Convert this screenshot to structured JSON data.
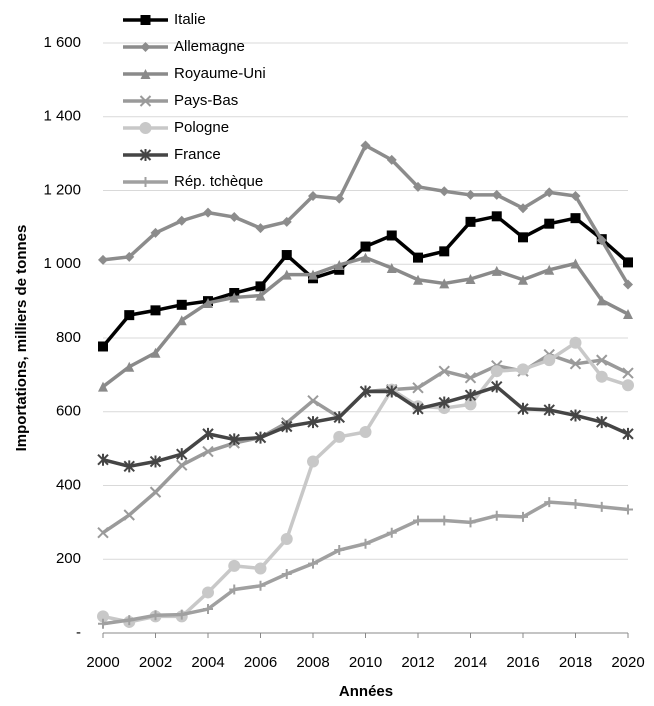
{
  "chart_data": {
    "type": "line",
    "y_label": "Importations, milliers de tonnes",
    "x_label": "Années",
    "x": [
      2000,
      2001,
      2002,
      2003,
      2004,
      2005,
      2006,
      2007,
      2008,
      2009,
      2010,
      2011,
      2012,
      2013,
      2014,
      2015,
      2016,
      2017,
      2018,
      2019,
      2020
    ],
    "xlim": [
      2000,
      2020
    ],
    "xticks": [
      2000,
      2002,
      2004,
      2006,
      2008,
      2010,
      2012,
      2014,
      2016,
      2018,
      2020
    ],
    "ylim": [
      0,
      1600
    ],
    "yticks": [
      {
        "value": 0,
        "label": "-"
      },
      200,
      400,
      600,
      800,
      {
        "value": 1000,
        "label": "1 000"
      },
      {
        "value": 1200,
        "label": "1 200"
      },
      {
        "value": 1400,
        "label": "1 400"
      },
      {
        "value": 1600,
        "label": "1 600"
      }
    ],
    "grid": true,
    "legend": "top-left",
    "series": [
      {
        "name": "Italie",
        "color": "#000000",
        "marker": "square",
        "values": [
          777,
          862,
          875,
          890,
          900,
          922,
          940,
          1025,
          962,
          985,
          1048,
          1078,
          1018,
          1035,
          1115,
          1130,
          1073,
          1110,
          1125,
          1068,
          1005
        ]
      },
      {
        "name": "Allemagne",
        "color": "#8c8c8c",
        "marker": "diamond",
        "values": [
          1012,
          1020,
          1085,
          1118,
          1140,
          1128,
          1098,
          1115,
          1185,
          1178,
          1322,
          1283,
          1210,
          1198,
          1188,
          1188,
          1152,
          1195,
          1185,
          1065,
          945
        ]
      },
      {
        "name": "Royaume-Uni",
        "color": "#8a8a8a",
        "marker": "triangle",
        "values": [
          668,
          722,
          760,
          848,
          895,
          910,
          915,
          972,
          972,
          998,
          1018,
          990,
          958,
          948,
          960,
          982,
          958,
          985,
          1002,
          902,
          865
        ]
      },
      {
        "name": "Pays-Bas",
        "color": "#9a9a9a",
        "marker": "x",
        "values": [
          272,
          320,
          382,
          455,
          492,
          515,
          530,
          570,
          630,
          585,
          655,
          660,
          665,
          710,
          692,
          725,
          710,
          755,
          730,
          740,
          705
        ]
      },
      {
        "name": "Pologne",
        "color": "#c8c8c8",
        "marker": "circle",
        "values": [
          45,
          30,
          45,
          45,
          110,
          182,
          175,
          255,
          465,
          532,
          545,
          660,
          615,
          610,
          620,
          710,
          715,
          740,
          787,
          695,
          672
        ]
      },
      {
        "name": "France",
        "color": "#454545",
        "marker": "asterisk",
        "values": [
          470,
          452,
          465,
          485,
          540,
          525,
          530,
          560,
          572,
          585,
          655,
          655,
          608,
          625,
          645,
          668,
          608,
          605,
          590,
          572,
          540
        ]
      },
      {
        "name": "Rép. tchèque",
        "color": "#a0a0a0",
        "marker": "plus",
        "values": [
          25,
          35,
          48,
          50,
          65,
          118,
          128,
          160,
          188,
          225,
          242,
          272,
          305,
          305,
          300,
          318,
          315,
          355,
          350,
          342,
          335
        ]
      }
    ]
  }
}
